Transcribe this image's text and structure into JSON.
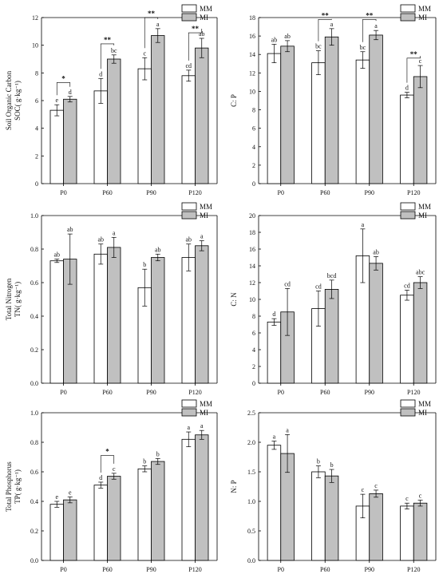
{
  "colors": {
    "MM": "#ffffff",
    "MI": "#c0c0c0",
    "axis": "#000000"
  },
  "chart_data": [
    {
      "type": "bar",
      "panel": "a",
      "ylabel_lines": [
        "Soil Organic Carbon",
        "SOC( g·kg⁻¹)"
      ],
      "categories": [
        "P0",
        "P60",
        "P90",
        "P120"
      ],
      "ylim": [
        0,
        12
      ],
      "yticks": [
        0,
        2,
        4,
        6,
        8,
        10,
        12
      ],
      "legend": [
        "MM",
        "MI"
      ],
      "series": [
        {
          "name": "MM",
          "values": [
            5.3,
            6.7,
            8.3,
            7.8
          ],
          "errors": [
            0.4,
            0.9,
            0.8,
            0.4
          ],
          "letters": [
            "e",
            "d",
            "c",
            "cd"
          ]
        },
        {
          "name": "MI",
          "values": [
            6.1,
            9.0,
            10.7,
            9.8
          ],
          "errors": [
            0.2,
            0.3,
            0.5,
            0.7
          ],
          "letters": [
            "d",
            "bc",
            "a",
            "ab"
          ]
        }
      ],
      "significance": [
        {
          "category": 0,
          "label": "*",
          "top": 7.3
        },
        {
          "category": 1,
          "label": "**",
          "top": 10.1
        },
        {
          "category": 2,
          "label": "**",
          "top": 12.0
        },
        {
          "category": 3,
          "label": "**",
          "top": 10.9
        }
      ]
    },
    {
      "type": "bar",
      "panel": "b",
      "ylabel_lines": [
        "C: P"
      ],
      "categories": [
        "P0",
        "P60",
        "P90",
        "P120"
      ],
      "ylim": [
        0,
        18
      ],
      "yticks": [
        0,
        2,
        4,
        6,
        8,
        10,
        12,
        14,
        16,
        18
      ],
      "legend": [
        "MM",
        "MI"
      ],
      "series": [
        {
          "name": "MM",
          "values": [
            14.1,
            13.1,
            13.4,
            9.6
          ],
          "errors": [
            1.0,
            1.3,
            0.9,
            0.3
          ],
          "letters": [
            "ab",
            "bc",
            "bc",
            "d"
          ]
        },
        {
          "name": "MI",
          "values": [
            14.9,
            15.9,
            16.1,
            11.6
          ],
          "errors": [
            0.6,
            0.9,
            0.5,
            1.2
          ],
          "letters": [
            "ab",
            "a",
            "a",
            "c"
          ]
        }
      ],
      "significance": [
        {
          "category": 1,
          "label": "**",
          "top": 17.8
        },
        {
          "category": 2,
          "label": "**",
          "top": 17.8
        },
        {
          "category": 3,
          "label": "**",
          "top": 13.6
        }
      ]
    },
    {
      "type": "bar",
      "panel": "c",
      "ylabel_lines": [
        "Total Nitrogen",
        "TN( g·kg⁻¹)"
      ],
      "categories": [
        "P0",
        "P60",
        "P90",
        "P120"
      ],
      "ylim": [
        0,
        1.0
      ],
      "yticks": [
        0,
        0.2,
        0.4,
        0.6,
        0.8,
        1.0
      ],
      "ytick_labels": [
        "0.0",
        "0.2",
        "0.4",
        "0.6",
        "0.8",
        "1.0"
      ],
      "legend": [
        "MM",
        "MI"
      ],
      "series": [
        {
          "name": "MM",
          "values": [
            0.73,
            0.77,
            0.57,
            0.75
          ],
          "errors": [
            0.01,
            0.06,
            0.11,
            0.08
          ],
          "letters": [
            "ab",
            "ab",
            "b",
            "ab"
          ]
        },
        {
          "name": "MI",
          "values": [
            0.74,
            0.81,
            0.75,
            0.82
          ],
          "errors": [
            0.15,
            0.06,
            0.02,
            0.03
          ],
          "letters": [
            "ab",
            "a",
            "ab",
            "a"
          ]
        }
      ],
      "significance": []
    },
    {
      "type": "bar",
      "panel": "d",
      "ylabel_lines": [
        "C: N"
      ],
      "categories": [
        "P0",
        "P60",
        "P90",
        "P120"
      ],
      "ylim": [
        0,
        20
      ],
      "yticks": [
        0,
        2,
        4,
        6,
        8,
        10,
        12,
        14,
        16,
        18,
        20
      ],
      "legend": [
        "MM",
        "MI"
      ],
      "series": [
        {
          "name": "MM",
          "values": [
            7.3,
            8.9,
            15.2,
            10.5
          ],
          "errors": [
            0.4,
            2.1,
            3.2,
            0.6
          ],
          "letters": [
            "d",
            "cd",
            "a",
            "cd"
          ]
        },
        {
          "name": "MI",
          "values": [
            8.5,
            11.2,
            14.3,
            12.0
          ],
          "errors": [
            2.8,
            1.1,
            0.8,
            0.7
          ],
          "letters": [
            "cd",
            "bcd",
            "ab",
            "abc"
          ]
        }
      ],
      "significance": []
    },
    {
      "type": "bar",
      "panel": "e",
      "ylabel_lines": [
        "Total Phosphorus",
        "TP( g·kg⁻¹)"
      ],
      "categories": [
        "P0",
        "P60",
        "P90",
        "P120"
      ],
      "ylim": [
        0,
        1.0
      ],
      "yticks": [
        0,
        0.2,
        0.4,
        0.6,
        0.8,
        1.0
      ],
      "ytick_labels": [
        "0.0",
        "0.2",
        "0.4",
        "0.6",
        "0.8",
        "1.0"
      ],
      "legend": [
        "MM",
        "MI"
      ],
      "series": [
        {
          "name": "MM",
          "values": [
            0.38,
            0.51,
            0.62,
            0.82
          ],
          "errors": [
            0.02,
            0.02,
            0.02,
            0.05
          ],
          "letters": [
            "e",
            "d",
            "b",
            "a"
          ]
        },
        {
          "name": "MI",
          "values": [
            0.41,
            0.57,
            0.67,
            0.85
          ],
          "errors": [
            0.02,
            0.02,
            0.02,
            0.03
          ],
          "letters": [
            "e",
            "c",
            "b",
            "a"
          ]
        }
      ],
      "significance": [
        {
          "category": 1,
          "label": "*",
          "top": 0.71
        }
      ]
    },
    {
      "type": "bar",
      "panel": "f",
      "ylabel_lines": [
        "N: P"
      ],
      "categories": [
        "P0",
        "P60",
        "P90",
        "P120"
      ],
      "ylim": [
        0,
        2.5
      ],
      "yticks": [
        0,
        0.5,
        1.0,
        1.5,
        2.0,
        2.5
      ],
      "ytick_labels": [
        "0.0",
        "0.5",
        "1.0",
        "1.5",
        "2.0",
        "2.5"
      ],
      "legend": [
        "MM",
        "MI"
      ],
      "series": [
        {
          "name": "MM",
          "values": [
            1.95,
            1.5,
            0.92,
            0.92
          ],
          "errors": [
            0.07,
            0.1,
            0.2,
            0.05
          ],
          "letters": [
            "a",
            "b",
            "c",
            "c"
          ]
        },
        {
          "name": "MI",
          "values": [
            1.81,
            1.43,
            1.13,
            0.97
          ],
          "errors": [
            0.32,
            0.11,
            0.06,
            0.05
          ],
          "letters": [
            "a",
            "b",
            "c",
            "c"
          ]
        }
      ],
      "significance": []
    }
  ]
}
